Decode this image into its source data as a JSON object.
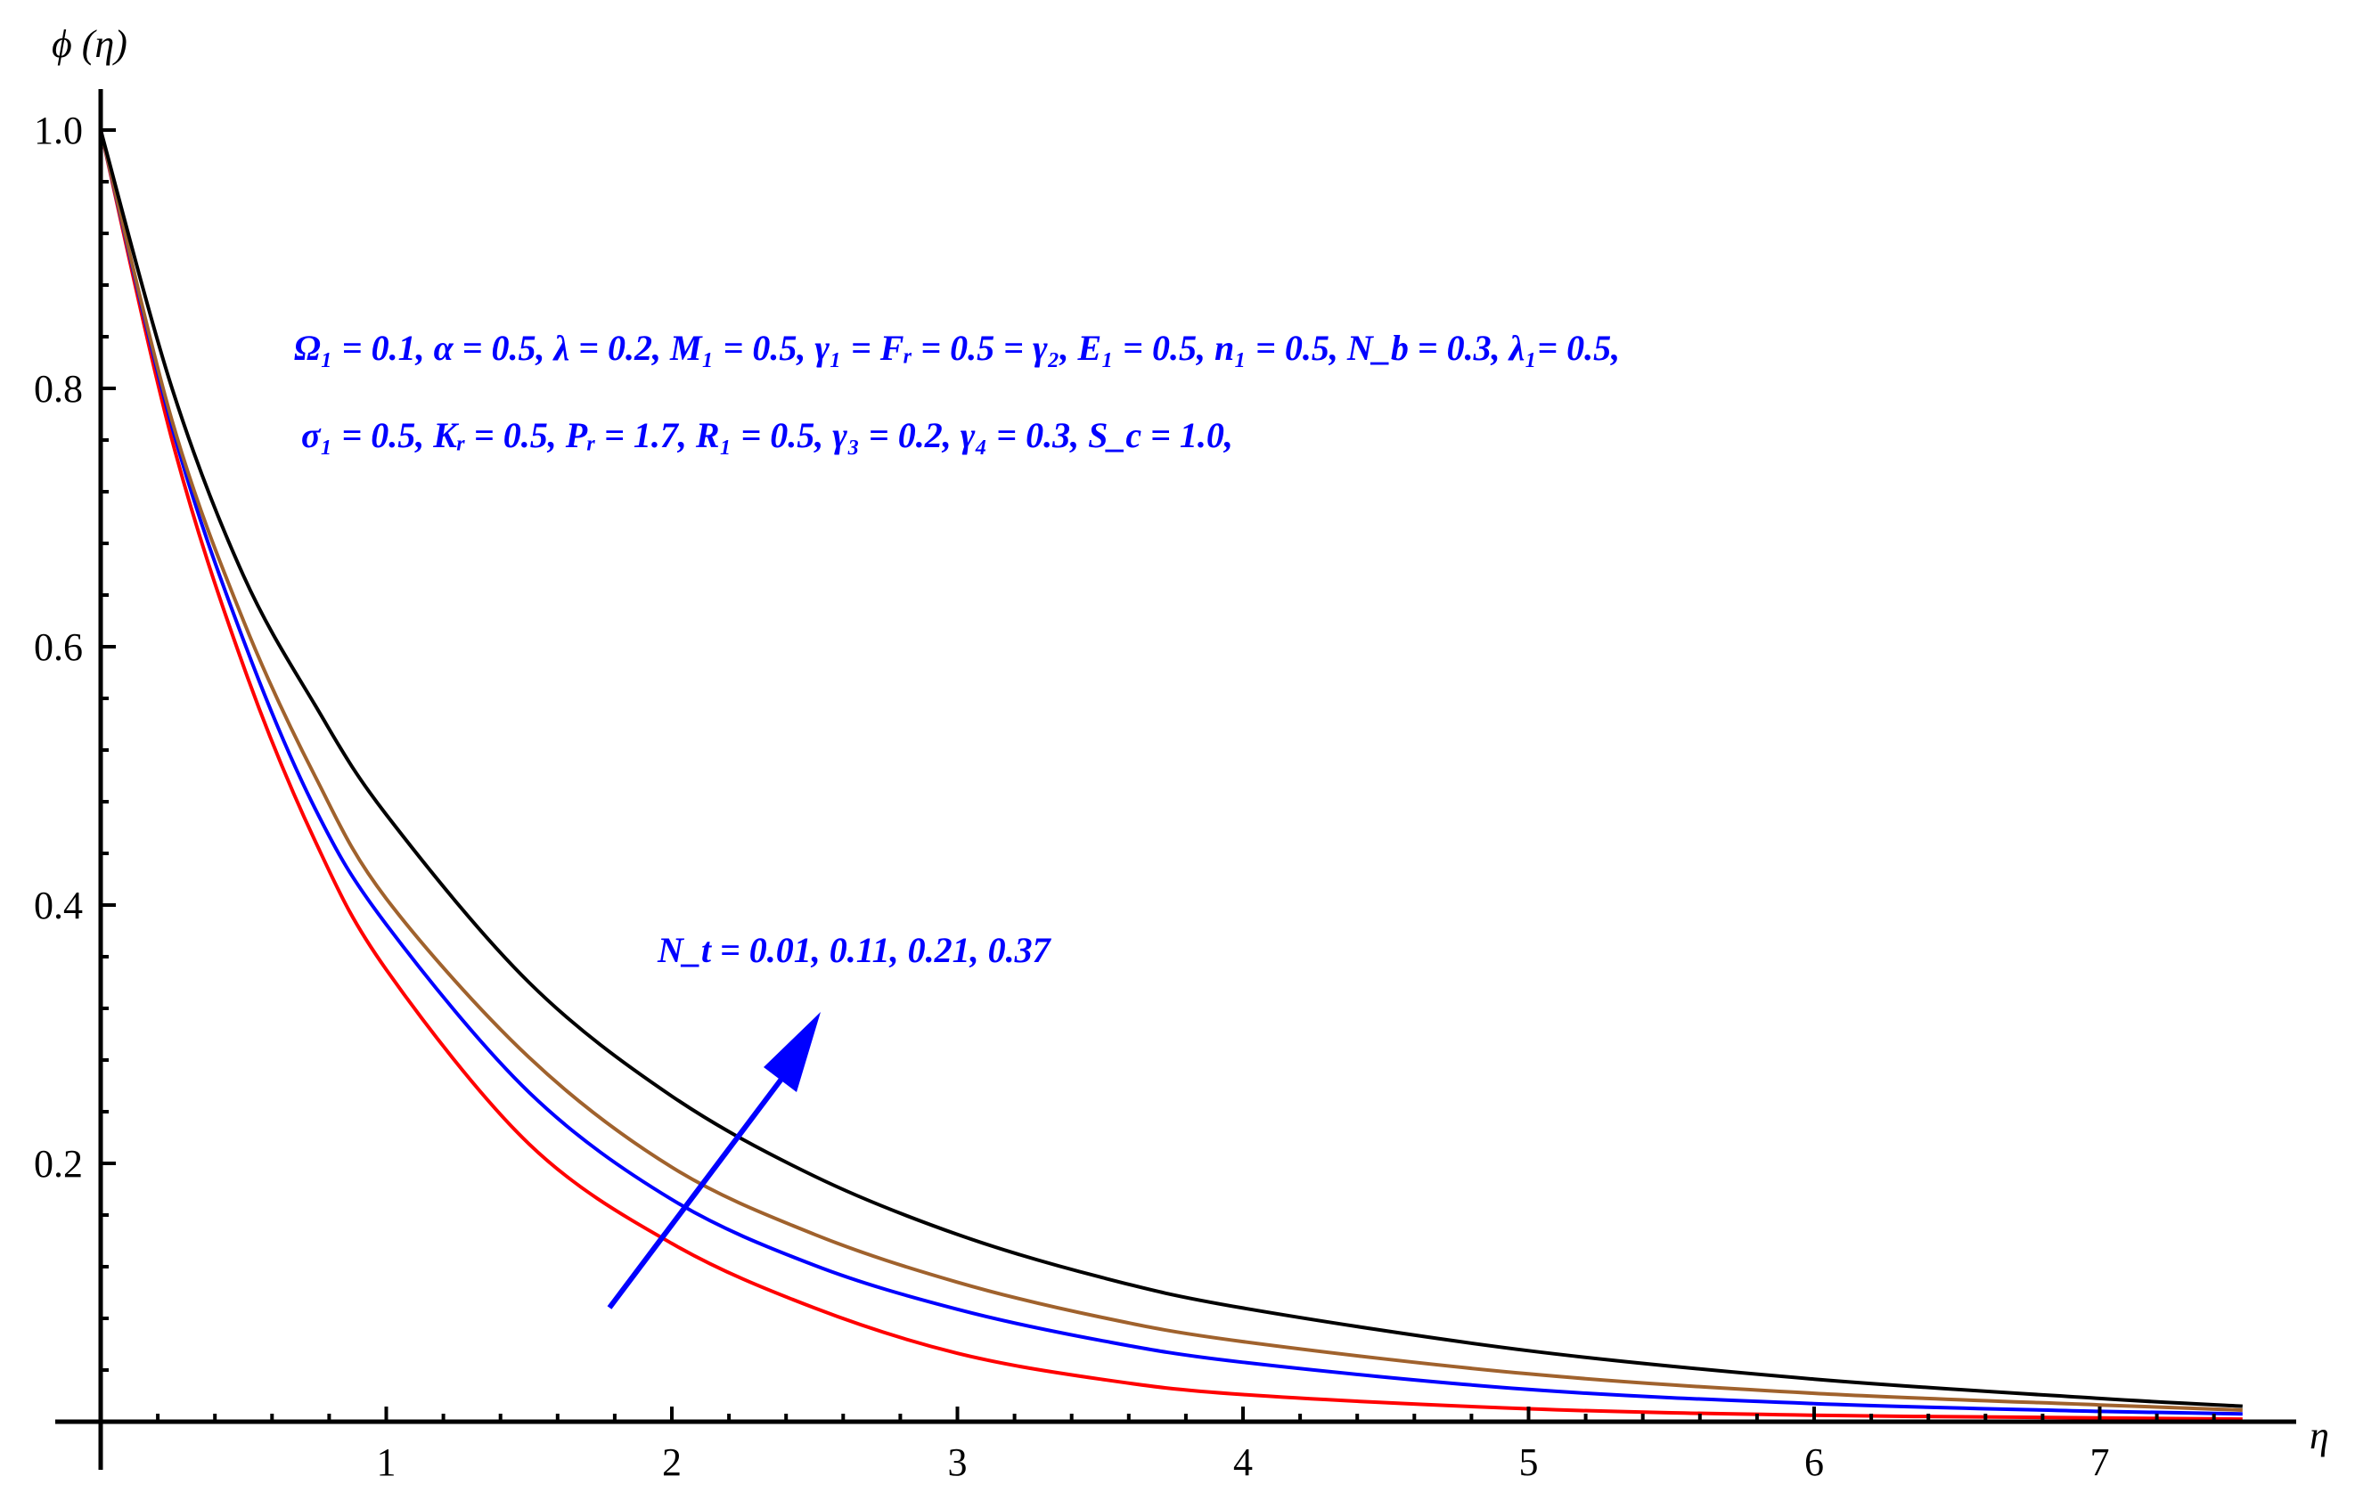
{
  "chart_data": {
    "type": "line",
    "xlabel": "η",
    "ylabel": "ϕ (η)",
    "xlim": [
      0,
      7.5
    ],
    "ylim": [
      0,
      1.0
    ],
    "x_ticks": [
      1,
      2,
      3,
      4,
      5,
      6,
      7
    ],
    "y_ticks": [
      0.2,
      0.4,
      0.6,
      0.8,
      1.0
    ],
    "x_tick_labels": [
      "1",
      "2",
      "3",
      "4",
      "5",
      "6",
      "7"
    ],
    "y_tick_labels": [
      "0.2",
      "0.4",
      "0.6",
      "0.8",
      "1.0"
    ],
    "grid": false,
    "x": [
      0,
      0.25,
      0.5,
      0.75,
      1.0,
      1.5,
      2.0,
      2.5,
      3.0,
      3.5,
      4.0,
      5.0,
      6.0,
      7.0,
      7.5
    ],
    "series": [
      {
        "color": "#ff0000",
        "values": [
          1.0,
          0.76,
          0.585,
          0.45,
          0.35,
          0.215,
          0.138,
          0.088,
          0.053,
          0.033,
          0.021,
          0.01,
          0.005,
          0.003,
          0.002
        ]
      },
      {
        "color": "#0000ff",
        "values": [
          1.0,
          0.77,
          0.605,
          0.475,
          0.385,
          0.255,
          0.172,
          0.121,
          0.087,
          0.063,
          0.046,
          0.025,
          0.014,
          0.008,
          0.006
        ]
      },
      {
        "color": "#a0622d",
        "values": [
          1.0,
          0.775,
          0.62,
          0.5,
          0.405,
          0.282,
          0.197,
          0.145,
          0.108,
          0.081,
          0.062,
          0.037,
          0.022,
          0.013,
          0.009
        ]
      },
      {
        "color": "#000000",
        "values": [
          1.0,
          0.8,
          0.655,
          0.555,
          0.47,
          0.34,
          0.252,
          0.19,
          0.145,
          0.112,
          0.088,
          0.055,
          0.033,
          0.018,
          0.012
        ]
      }
    ],
    "annotations": {
      "params_line1": "Ω₁ =  0.1, α = 0.5, λ = 0.2, M₁ = 0.5, γ₁ = Fᵣ = 0.5 = γ₂, E₁ = 0.5, n₁ = 0.5, N_b = 0.3, λ₁= 0.5,",
      "params_line2": "σ₁ = 0.5,  Kᵣ = 0.5, Pᵣ = 1.7, R₁ = 0.5, γ₃ = 0.2, γ₄ = 0.3, S_c = 1.0,",
      "nt_label": "N_t  = 0.01, 0.11, 0.21, 0.37"
    },
    "arrow_color": "#0000ff"
  }
}
